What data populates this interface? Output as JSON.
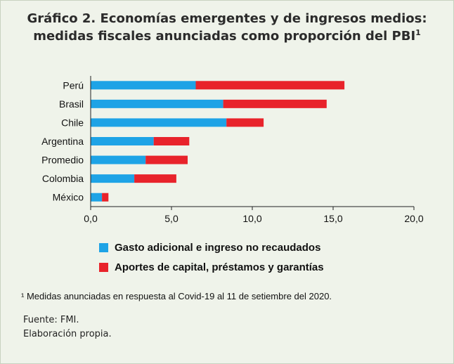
{
  "title": {
    "line1": "Gráfico 2. Economías emergentes y de ingresos medios:",
    "line2": "medidas fiscales anunciadas como proporción del PBI",
    "footnote_marker": "1"
  },
  "chart_data": {
    "type": "bar",
    "orientation": "horizontal",
    "stacked": true,
    "categories": [
      "Perú",
      "Brasil",
      "Chile",
      "Argentina",
      "Promedio",
      "Colombia",
      "México"
    ],
    "series": [
      {
        "name": "Gasto adicional e ingreso no recaudados",
        "color": "#1ea3e6",
        "values": [
          6.5,
          8.2,
          8.4,
          3.9,
          3.4,
          2.7,
          0.7
        ]
      },
      {
        "name": "Aportes de capital, préstamos y garantías",
        "color": "#e8232b",
        "values": [
          9.2,
          6.4,
          2.3,
          2.2,
          2.6,
          2.6,
          0.4
        ]
      }
    ],
    "xlim": [
      0,
      20
    ],
    "x_ticks": [
      "0,0",
      "5,0",
      "10,0",
      "15,0",
      "20,0"
    ],
    "legend_position": "bottom",
    "grid": false
  },
  "footnote": "¹ Medidas anunciadas en respuesta al Covid-19 al 11 de setiembre del 2020.",
  "source": "Fuente: FMI.",
  "author": "Elaboración propia."
}
